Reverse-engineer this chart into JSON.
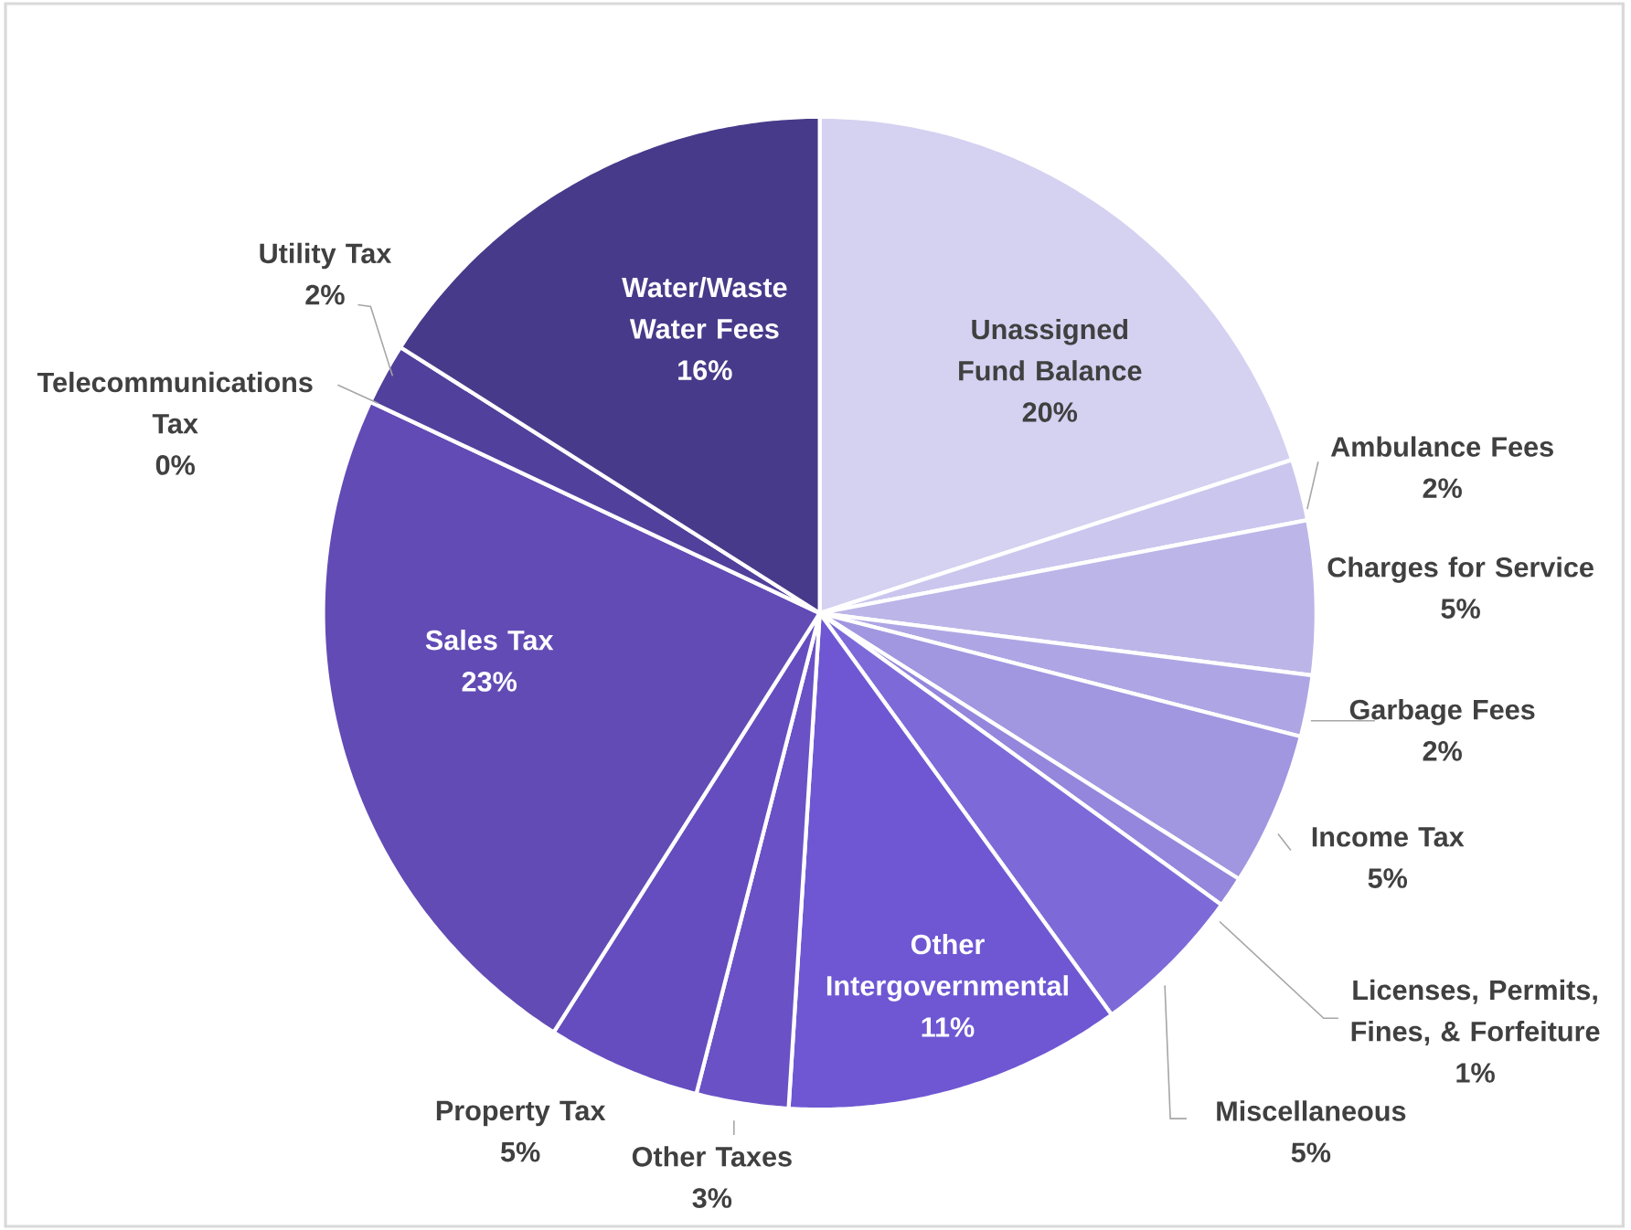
{
  "chart_data": {
    "type": "pie",
    "categories": [
      "Unassigned Fund Balance",
      "Ambulance Fees",
      "Charges for Service",
      "Garbage Fees",
      "Income Tax",
      "Licenses, Permits, Fines, & Forfeiture",
      "Miscellaneous",
      "Other Intergovernmental",
      "Other Taxes",
      "Property Tax",
      "Sales Tax",
      "Telecommunications Tax",
      "Utility Tax",
      "Water/Waste Water Fees"
    ],
    "values": [
      20,
      2,
      5,
      2,
      5,
      1,
      5,
      11,
      3,
      5,
      23,
      0,
      2,
      16
    ],
    "value_labels": [
      "20%",
      "2%",
      "5%",
      "2%",
      "5%",
      "1%",
      "5%",
      "11%",
      "3%",
      "5%",
      "23%",
      "0%",
      "2%",
      "16%"
    ],
    "colors": [
      "#d5d1f1",
      "#cbc6ee",
      "#bcb5e8",
      "#aea6e4",
      "#a196e0",
      "#9386dc",
      "#7d6ad8",
      "#6f57d3",
      "#6a51c6",
      "#654dbf",
      "#624bb5",
      "#5742a8",
      "#51409c",
      "#483a8a"
    ]
  }
}
